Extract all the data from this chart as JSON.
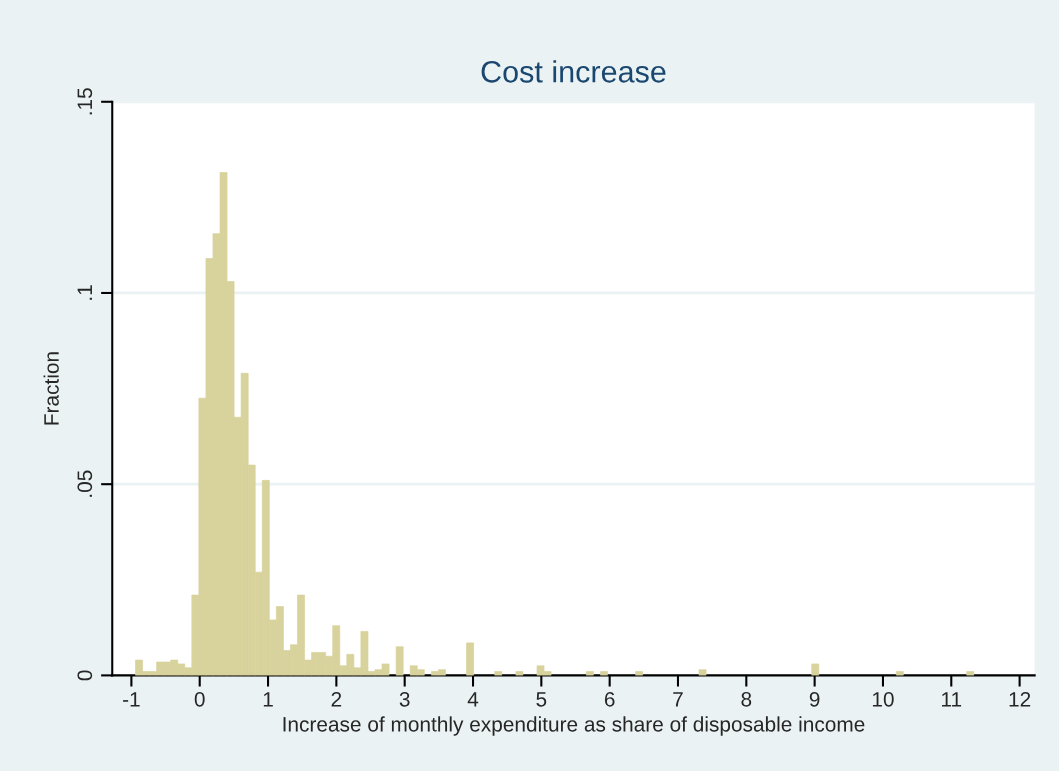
{
  "chart_data": {
    "type": "histogram",
    "title": "Cost increase",
    "xlabel": "Increase of monthly expenditure as share of disposable income",
    "ylabel": "Fraction",
    "bins": [
      -0.94,
      -0.8369,
      -0.7338,
      -0.6307,
      -0.5276,
      -0.4245,
      -0.3214,
      -0.2183,
      -0.1152,
      -0.0121,
      0.091,
      0.1941,
      0.2972,
      0.4003,
      0.5034,
      0.6065,
      0.7096,
      0.8127,
      0.9158,
      1.0189,
      1.122,
      1.2251,
      1.3282,
      1.4313,
      1.5344,
      1.6375,
      1.7406,
      1.8437,
      1.9468,
      2.0499,
      2.153,
      2.2561,
      2.3592,
      2.4623,
      2.5654,
      2.6685,
      2.7716,
      2.8747,
      2.9778,
      3.0809,
      3.184,
      3.2871,
      3.3902,
      3.4933,
      3.5964,
      3.6995,
      3.8026,
      3.9057,
      4.0088,
      4.1119,
      4.215,
      4.3181,
      4.4212,
      4.5243,
      4.6274,
      4.7305,
      4.8336,
      4.9367,
      5.0398,
      5.1429,
      5.246,
      5.3491,
      5.4522,
      5.5553,
      5.6584,
      5.7615,
      5.8646,
      5.9677,
      6.0708,
      6.1739,
      6.277,
      6.3801,
      6.4832,
      6.5863,
      6.6894,
      6.7925,
      6.8956,
      6.9987,
      7.1018,
      7.2049,
      7.308,
      7.4111,
      7.5142,
      7.6173,
      7.7204,
      7.8235,
      7.9266,
      8.0297,
      8.1328,
      8.2359,
      8.339,
      8.4421,
      8.5452,
      8.6483,
      8.7514,
      8.8545,
      8.9576,
      9.0607,
      9.1638,
      9.2669,
      9.37,
      9.4731,
      9.5762,
      9.6793,
      9.7824,
      9.8855,
      9.9886,
      10.0917,
      10.1948,
      10.2979,
      10.401,
      10.5041,
      10.6072,
      10.7103,
      10.8134,
      10.9165,
      11.0196,
      11.1227,
      11.2258,
      11.3289
    ],
    "values": [
      0.004,
      0.001,
      0.001,
      0.0035,
      0.0035,
      0.004,
      0.003,
      0.002,
      0.021,
      0.0725,
      0.109,
      0.1155,
      0.1315,
      0.103,
      0.0675,
      0.079,
      0.055,
      0.027,
      0.051,
      0.0145,
      0.018,
      0.0065,
      0.008,
      0.021,
      0.004,
      0.006,
      0.006,
      0.005,
      0.013,
      0.0025,
      0.0055,
      0.002,
      0.0115,
      0.001,
      0.0015,
      0.003,
      0,
      0.0075,
      0,
      0.0025,
      0.0015,
      0,
      0.001,
      0.0015,
      0,
      0,
      0,
      0.0085,
      0,
      0,
      0,
      0.001,
      0,
      0,
      0.001,
      0,
      0,
      0.0025,
      0.001,
      0,
      0,
      0,
      0,
      0,
      0.001,
      0,
      0.001,
      0,
      0,
      0,
      0,
      0.001,
      0,
      0,
      0,
      0,
      0,
      0,
      0,
      0,
      0.0015,
      0,
      0,
      0,
      0,
      0,
      0,
      0,
      0,
      0,
      0,
      0,
      0,
      0,
      0,
      0,
      0.003,
      0,
      0,
      0,
      0,
      0,
      0,
      0,
      0,
      0,
      0,
      0,
      0.001,
      0,
      0,
      0,
      0,
      0,
      0,
      0,
      0,
      0,
      0.001
    ],
    "color": "#d8d29c",
    "xlim": [
      -1.28,
      12.22
    ],
    "xticks": [
      -1,
      0,
      1,
      2,
      3,
      4,
      5,
      6,
      7,
      8,
      9,
      10,
      11,
      12
    ],
    "ylim": [
      0,
      0.15
    ],
    "yticks": [
      0,
      {
        "value": 0.05,
        "label": ".05"
      },
      {
        "value": 0.1,
        "label": ".1"
      },
      {
        "value": 0.15,
        "label": ".15"
      }
    ],
    "grid": "y"
  }
}
